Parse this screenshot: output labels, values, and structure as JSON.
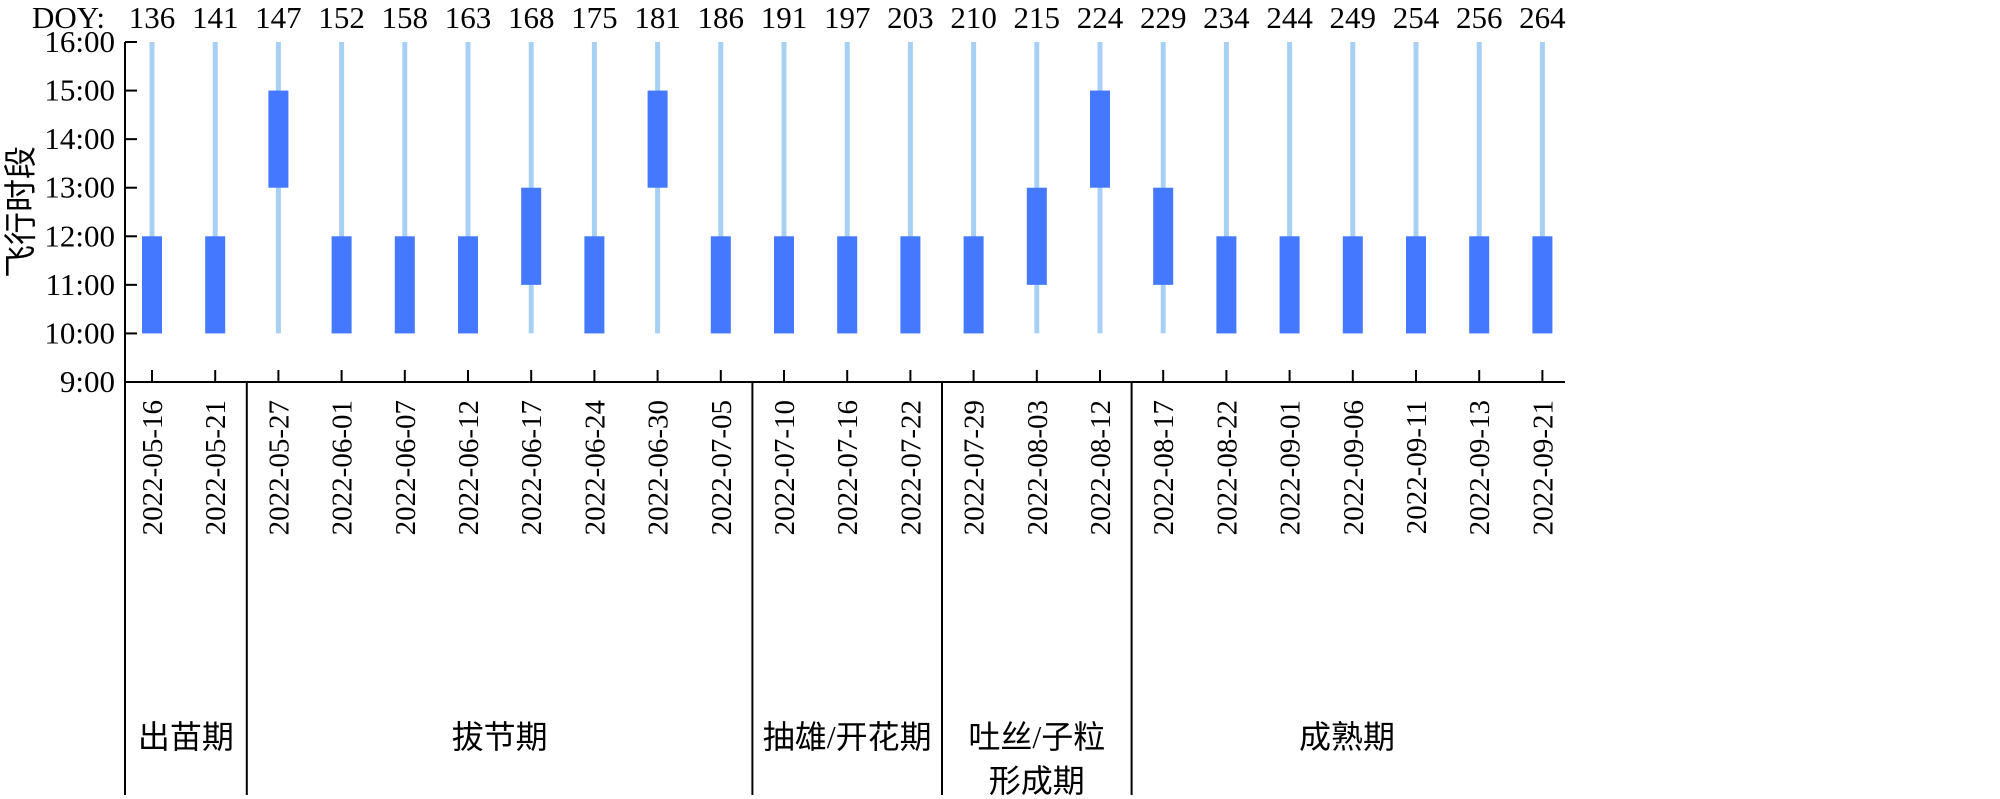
{
  "chart_data": {
    "type": "bar",
    "ylabel": "飞行时段",
    "doy_label": "DOY:",
    "yticks": [
      "9:00",
      "10:00",
      "11:00",
      "12:00",
      "13:00",
      "14:00",
      "15:00",
      "16:00"
    ],
    "ylim": [
      9,
      16
    ],
    "window": [
      10,
      16
    ],
    "grid": false,
    "colors": {
      "flight": "#4378ff",
      "window": "#a8d0f5"
    },
    "flights": [
      {
        "date": "2022-05-16",
        "doy": "136",
        "start": 10,
        "end": 12
      },
      {
        "date": "2022-05-21",
        "doy": "141",
        "start": 10,
        "end": 12
      },
      {
        "date": "2022-05-27",
        "doy": "147",
        "start": 13,
        "end": 15
      },
      {
        "date": "2022-06-01",
        "doy": "152",
        "start": 10,
        "end": 12
      },
      {
        "date": "2022-06-07",
        "doy": "158",
        "start": 10,
        "end": 12
      },
      {
        "date": "2022-06-12",
        "doy": "163",
        "start": 10,
        "end": 12
      },
      {
        "date": "2022-06-17",
        "doy": "168",
        "start": 11,
        "end": 13
      },
      {
        "date": "2022-06-24",
        "doy": "175",
        "start": 10,
        "end": 12
      },
      {
        "date": "2022-06-30",
        "doy": "181",
        "start": 13,
        "end": 15
      },
      {
        "date": "2022-07-05",
        "doy": "186",
        "start": 10,
        "end": 12
      },
      {
        "date": "2022-07-10",
        "doy": "191",
        "start": 10,
        "end": 12
      },
      {
        "date": "2022-07-16",
        "doy": "197",
        "start": 10,
        "end": 12
      },
      {
        "date": "2022-07-22",
        "doy": "203",
        "start": 10,
        "end": 12
      },
      {
        "date": "2022-07-29",
        "doy": "210",
        "start": 10,
        "end": 12
      },
      {
        "date": "2022-08-03",
        "doy": "215",
        "start": 11,
        "end": 13
      },
      {
        "date": "2022-08-12",
        "doy": "224",
        "start": 13,
        "end": 15
      },
      {
        "date": "2022-08-17",
        "doy": "229",
        "start": 11,
        "end": 13
      },
      {
        "date": "2022-08-22",
        "doy": "234",
        "start": 10,
        "end": 12
      },
      {
        "date": "2022-09-01",
        "doy": "244",
        "start": 10,
        "end": 12
      },
      {
        "date": "2022-09-06",
        "doy": "249",
        "start": 10,
        "end": 12
      },
      {
        "date": "2022-09-11",
        "doy": "254",
        "start": 10,
        "end": 12
      },
      {
        "date": "2022-09-13",
        "doy": "256",
        "start": 10,
        "end": 12
      },
      {
        "date": "2022-09-21",
        "doy": "264",
        "start": 10,
        "end": 12
      }
    ],
    "stages": [
      {
        "lines": [
          "出苗期"
        ],
        "from": 0,
        "to": 1
      },
      {
        "lines": [
          "拔节期"
        ],
        "from": 2,
        "to": 9
      },
      {
        "lines": [
          "抽雄/开花期"
        ],
        "from": 10,
        "to": 12
      },
      {
        "lines": [
          "吐丝/子粒",
          "形成期"
        ],
        "from": 13,
        "to": 15
      },
      {
        "lines": [
          "成熟期"
        ],
        "from": 16,
        "to": 22
      }
    ]
  }
}
